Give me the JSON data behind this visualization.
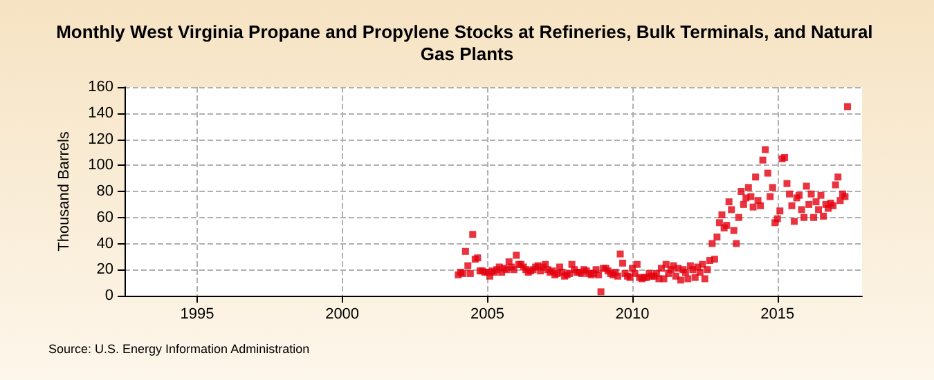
{
  "chart_data": {
    "type": "scatter",
    "title": "Monthly West Virginia Propane and Propylene Stocks at Refineries, Bulk Terminals, and Natural Gas Plants",
    "ylabel": "Thousand Barrels",
    "annotations": [
      "Source: U.S. Energy Information Administration"
    ],
    "x": [
      "2004-01",
      "2004-02",
      "2004-03",
      "2004-04",
      "2004-05",
      "2004-06",
      "2004-07",
      "2004-08",
      "2004-09",
      "2004-10",
      "2004-11",
      "2004-12",
      "2005-01",
      "2005-02",
      "2005-03",
      "2005-04",
      "2005-05",
      "2005-06",
      "2005-07",
      "2005-08",
      "2005-09",
      "2005-10",
      "2005-11",
      "2005-12",
      "2006-01",
      "2006-02",
      "2006-03",
      "2006-04",
      "2006-05",
      "2006-06",
      "2006-07",
      "2006-08",
      "2006-09",
      "2006-10",
      "2006-11",
      "2006-12",
      "2007-01",
      "2007-02",
      "2007-03",
      "2007-04",
      "2007-05",
      "2007-06",
      "2007-07",
      "2007-08",
      "2007-09",
      "2007-10",
      "2007-11",
      "2007-12",
      "2008-01",
      "2008-02",
      "2008-03",
      "2008-04",
      "2008-05",
      "2008-06",
      "2008-07",
      "2008-08",
      "2008-09",
      "2008-10",
      "2008-11",
      "2008-12",
      "2009-01",
      "2009-02",
      "2009-03",
      "2009-04",
      "2009-05",
      "2009-06",
      "2009-07",
      "2009-08",
      "2009-09",
      "2009-10",
      "2009-11",
      "2009-12",
      "2010-01",
      "2010-02",
      "2010-03",
      "2010-04",
      "2010-05",
      "2010-06",
      "2010-07",
      "2010-08",
      "2010-09",
      "2010-10",
      "2010-11",
      "2010-12",
      "2011-01",
      "2011-02",
      "2011-03",
      "2011-04",
      "2011-05",
      "2011-06",
      "2011-07",
      "2011-08",
      "2011-09",
      "2011-10",
      "2011-11",
      "2011-12",
      "2012-01",
      "2012-02",
      "2012-03",
      "2012-04",
      "2012-05",
      "2012-06",
      "2012-07",
      "2012-08",
      "2012-09",
      "2012-10",
      "2012-11",
      "2012-12",
      "2013-01",
      "2013-02",
      "2013-03",
      "2013-04",
      "2013-05",
      "2013-06",
      "2013-07",
      "2013-08",
      "2013-09",
      "2013-10",
      "2013-11",
      "2013-12",
      "2014-01",
      "2014-02",
      "2014-03",
      "2014-04",
      "2014-05",
      "2014-06",
      "2014-07",
      "2014-08",
      "2014-09",
      "2014-10",
      "2014-11",
      "2014-12",
      "2015-01",
      "2015-02",
      "2015-03",
      "2015-04",
      "2015-05",
      "2015-06",
      "2015-07",
      "2015-08",
      "2015-09",
      "2015-10",
      "2015-11",
      "2015-12",
      "2016-01",
      "2016-02",
      "2016-03",
      "2016-04",
      "2016-05",
      "2016-06",
      "2016-07",
      "2016-08",
      "2016-09",
      "2016-10",
      "2016-11",
      "2016-12",
      "2017-01",
      "2017-02",
      "2017-03",
      "2017-04",
      "2017-05",
      "2017-06"
    ],
    "values": [
      16,
      18,
      17,
      34,
      23,
      17,
      47,
      28,
      29,
      19,
      19,
      18,
      18,
      15,
      19,
      18,
      20,
      22,
      18,
      21,
      20,
      26,
      22,
      20,
      31,
      24,
      24,
      22,
      20,
      18,
      19,
      20,
      22,
      23,
      19,
      22,
      24,
      20,
      18,
      19,
      16,
      17,
      22,
      18,
      15,
      16,
      17,
      24,
      20,
      18,
      18,
      17,
      20,
      19,
      17,
      16,
      17,
      20,
      16,
      3,
      21,
      21,
      19,
      17,
      16,
      18,
      15,
      32,
      25,
      17,
      15,
      14,
      21,
      17,
      24,
      14,
      13,
      14,
      14,
      17,
      15,
      15,
      17,
      13,
      21,
      13,
      24,
      17,
      20,
      23,
      15,
      21,
      12,
      20,
      18,
      13,
      23,
      20,
      14,
      22,
      18,
      24,
      13,
      20,
      27,
      40,
      28,
      45,
      56,
      62,
      52,
      54,
      72,
      66,
      50,
      40,
      60,
      80,
      70,
      75,
      83,
      76,
      68,
      91,
      73,
      69,
      104,
      112,
      94,
      76,
      83,
      56,
      59,
      65,
      105,
      106,
      86,
      78,
      69,
      57,
      75,
      77,
      66,
      60,
      84,
      70,
      78,
      60,
      72,
      66,
      77,
      61,
      70,
      67,
      71,
      69,
      85,
      91,
      73,
      78,
      76,
      145
    ],
    "color": "#e3000f",
    "marker": "square",
    "xlim": [
      "1992-07",
      "2017-12"
    ],
    "xticks": [
      "1995",
      "2000",
      "2005",
      "2010",
      "2015"
    ],
    "ylim": [
      0,
      160
    ],
    "yticks": [
      0,
      20,
      40,
      60,
      80,
      100,
      120,
      140,
      160
    ],
    "grid": true
  }
}
